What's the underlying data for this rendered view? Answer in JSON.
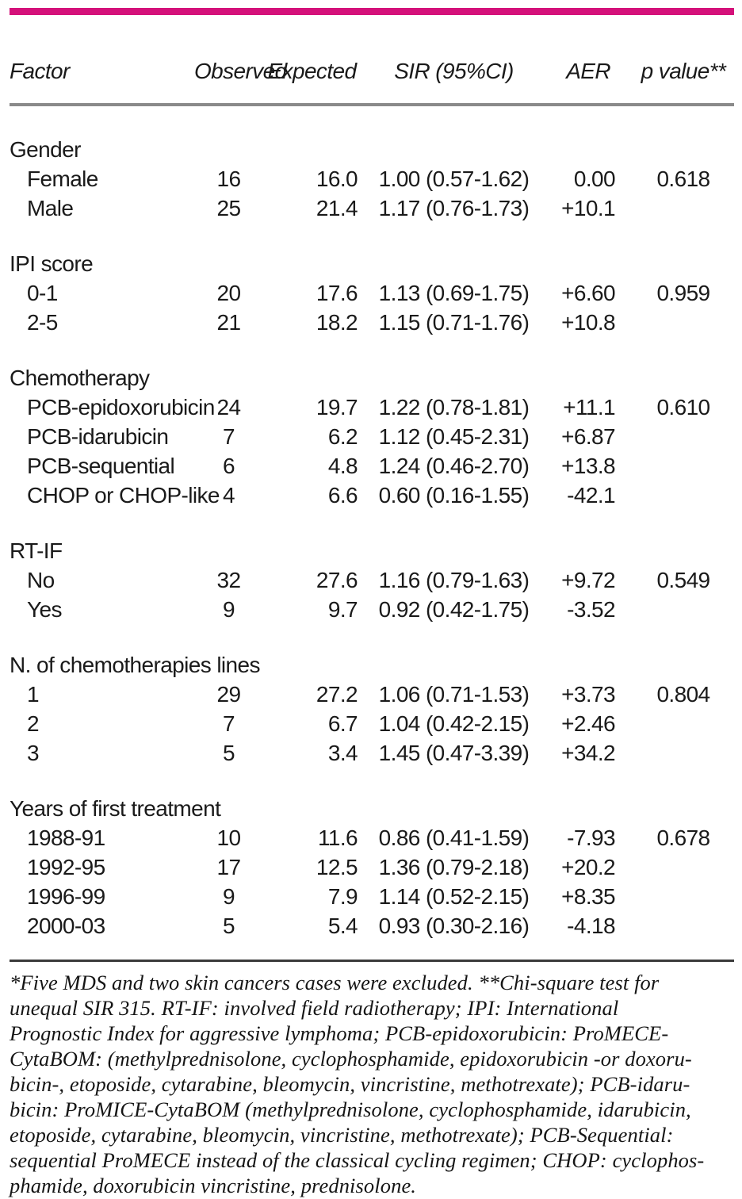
{
  "page": {
    "accent_bar_color": "#d4117a",
    "header_rule_color": "#8a8a8a",
    "footer_rule_color": "#3a3a3a",
    "text_color": "#1a1a1a"
  },
  "table": {
    "headers": [
      "Factor",
      "Observed",
      "Expected",
      "SIR (95%CI)",
      "AER",
      "p value**"
    ],
    "sections": [
      {
        "label": "Gender",
        "rows": [
          {
            "factor": "Female",
            "observed": "16",
            "expected": "16.0",
            "sir": "1.00 (0.57-1.62)",
            "aer": "0.00",
            "p": "0.618"
          },
          {
            "factor": "Male",
            "observed": "25",
            "expected": "21.4",
            "sir": "1.17 (0.76-1.73)",
            "aer": "+10.1",
            "p": ""
          }
        ]
      },
      {
        "label": "IPI score",
        "rows": [
          {
            "factor": "0-1",
            "observed": "20",
            "expected": "17.6",
            "sir": "1.13 (0.69-1.75)",
            "aer": "+6.60",
            "p": "0.959"
          },
          {
            "factor": "2-5",
            "observed": "21",
            "expected": "18.2",
            "sir": "1.15 (0.71-1.76)",
            "aer": "+10.8",
            "p": ""
          }
        ]
      },
      {
        "label": "Chemotherapy",
        "rows": [
          {
            "factor": "PCB-epidoxorubicin",
            "observed": "24",
            "expected": "19.7",
            "sir": "1.22 (0.78-1.81)",
            "aer": "+11.1",
            "p": "0.610"
          },
          {
            "factor": "PCB-idarubicin",
            "observed": "7",
            "expected": "6.2",
            "sir": "1.12 (0.45-2.31)",
            "aer": "+6.87",
            "p": ""
          },
          {
            "factor": "PCB-sequential",
            "observed": "6",
            "expected": "4.8",
            "sir": "1.24 (0.46-2.70)",
            "aer": "+13.8",
            "p": ""
          },
          {
            "factor": "CHOP or CHOP-like",
            "observed": "4",
            "expected": "6.6",
            "sir": "0.60 (0.16-1.55)",
            "aer": "-42.1",
            "p": ""
          }
        ]
      },
      {
        "label": "RT-IF",
        "rows": [
          {
            "factor": "No",
            "observed": "32",
            "expected": "27.6",
            "sir": "1.16 (0.79-1.63)",
            "aer": "+9.72",
            "p": "0.549"
          },
          {
            "factor": "Yes",
            "observed": "9",
            "expected": "9.7",
            "sir": "0.92 (0.42-1.75)",
            "aer": "-3.52",
            "p": ""
          }
        ]
      },
      {
        "label": "N. of chemotherapies lines",
        "rows": [
          {
            "factor": "1",
            "observed": "29",
            "expected": "27.2",
            "sir": "1.06 (0.71-1.53)",
            "aer": "+3.73",
            "p": "0.804"
          },
          {
            "factor": "2",
            "observed": "7",
            "expected": "6.7",
            "sir": "1.04 (0.42-2.15)",
            "aer": "+2.46",
            "p": ""
          },
          {
            "factor": "3",
            "observed": "5",
            "expected": "3.4",
            "sir": "1.45 (0.47-3.39)",
            "aer": "+34.2",
            "p": ""
          }
        ]
      },
      {
        "label": "Years of first treatment",
        "rows": [
          {
            "factor": "1988-91",
            "observed": "10",
            "expected": "11.6",
            "sir": "0.86 (0.41-1.59)",
            "aer": "-7.93",
            "p": "0.678"
          },
          {
            "factor": "1992-95",
            "observed": "17",
            "expected": "12.5",
            "sir": "1.36 (0.79-2.18)",
            "aer": "+20.2",
            "p": ""
          },
          {
            "factor": "1996-99",
            "observed": "9",
            "expected": "7.9",
            "sir": "1.14 (0.52-2.15)",
            "aer": "+8.35",
            "p": ""
          },
          {
            "factor": "2000-03",
            "observed": "5",
            "expected": "5.4",
            "sir": "0.93 (0.30-2.16)",
            "aer": "-4.18",
            "p": ""
          }
        ]
      }
    ]
  },
  "footnote": "*Five MDS and two skin cancers cases were excluded. **Chi-square test for\nunequal SIR 315. RT-IF: involved field radiotherapy; IPI: International\nPrognostic Index for aggressive lymphoma; PCB-epidoxorubicin: ProMECE-\nCytaBOM: (methylprednisolone, cyclophosphamide, epidoxorubicin -or doxoru-\nbicin-, etoposide, cytarabine, bleomycin, vincristine, methotrexate); PCB-idaru-\nbicin: ProMICE-CytaBOM (methylprednisolone, cyclophosphamide, idarubicin,\netoposide, cytarabine, bleomycin, vincristine, methotrexate); PCB-Sequential:\nsequential ProMECE instead of the classical cycling regimen; CHOP: cyclophos-\nphamide, doxorubicin vincristine, prednisolone."
}
